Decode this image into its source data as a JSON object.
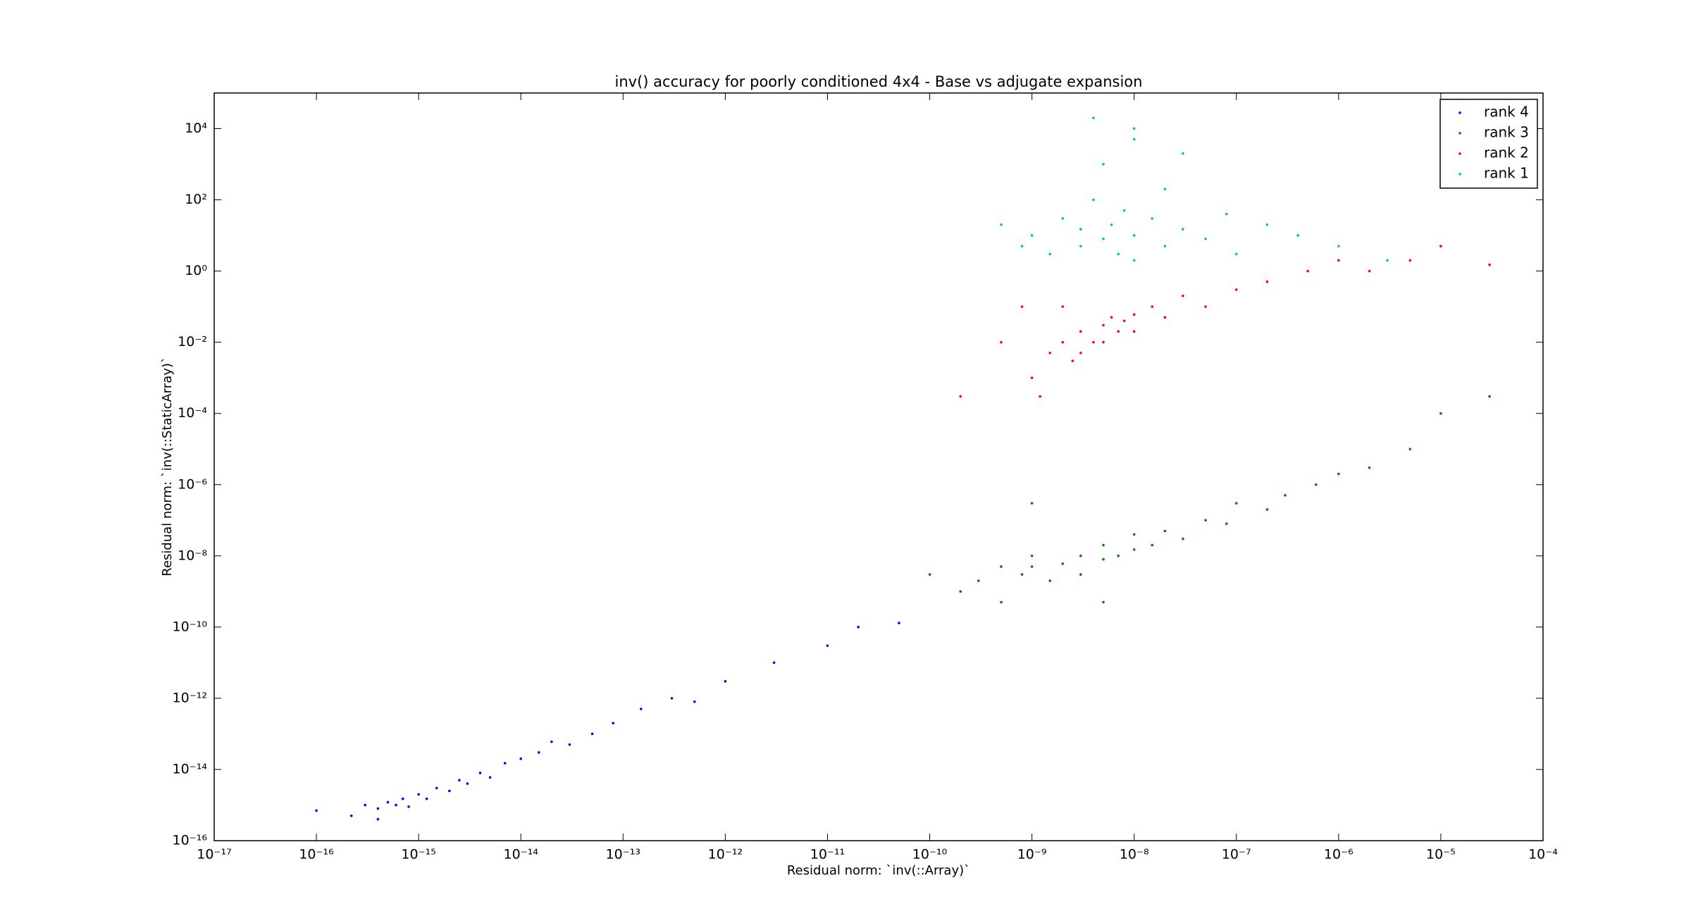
{
  "chart_data": {
    "type": "scatter",
    "title": "inv() accuracy for poorly conditioned 4x4 - Base vs adjugate expansion",
    "x_label": "Residual norm: `inv(::Array)`",
    "y_label": "Residual norm: `inv(::StaticArray)`",
    "x_scale": "log",
    "y_scale": "log",
    "legend": "upper right",
    "xlim": [
      1e-17,
      0.0001
    ],
    "ylim": [
      1e-16,
      100000.0
    ],
    "xticks": [
      {
        "value": 1e-17,
        "label": "10⁻¹⁷"
      },
      {
        "value": 1e-16,
        "label": "10⁻¹⁶"
      },
      {
        "value": 1e-15,
        "label": "10⁻¹⁵"
      },
      {
        "value": 1e-14,
        "label": "10⁻¹⁴"
      },
      {
        "value": 1e-13,
        "label": "10⁻¹³"
      },
      {
        "value": 1e-12,
        "label": "10⁻¹²"
      },
      {
        "value": 1e-11,
        "label": "10⁻¹¹"
      },
      {
        "value": 1e-10,
        "label": "10⁻¹⁰"
      },
      {
        "value": 1e-09,
        "label": "10⁻⁹"
      },
      {
        "value": 1e-08,
        "label": "10⁻⁸"
      },
      {
        "value": 1e-07,
        "label": "10⁻⁷"
      },
      {
        "value": 1e-06,
        "label": "10⁻⁶"
      },
      {
        "value": 1e-05,
        "label": "10⁻⁵"
      },
      {
        "value": 0.0001,
        "label": "10⁻⁴"
      }
    ],
    "yticks": [
      {
        "value": 1e-16,
        "label": "10⁻¹⁶"
      },
      {
        "value": 1e-14,
        "label": "10⁻¹⁴"
      },
      {
        "value": 1e-12,
        "label": "10⁻¹²"
      },
      {
        "value": 1e-10,
        "label": "10⁻¹⁰"
      },
      {
        "value": 1e-08,
        "label": "10⁻⁸"
      },
      {
        "value": 1e-06,
        "label": "10⁻⁶"
      },
      {
        "value": 0.0001,
        "label": "10⁻⁴"
      },
      {
        "value": 0.01,
        "label": "10⁻²"
      },
      {
        "value": 1,
        "label": "10⁰"
      },
      {
        "value": 100,
        "label": "10²"
      },
      {
        "value": 10000,
        "label": "10⁴"
      }
    ],
    "series": [
      {
        "name": "rank 4",
        "color": "#0000ff",
        "x": [
          3e-16,
          4e-16,
          5e-16,
          6e-16,
          7e-16,
          8e-16,
          1e-15,
          1.2e-15,
          1.5e-15,
          2e-15,
          2.5e-15,
          3e-15,
          4e-15,
          5e-15,
          7e-15,
          1e-14,
          1.5e-14,
          2e-14,
          3e-14,
          5e-14,
          8e-14,
          1.5e-13,
          3e-13,
          5e-13,
          1e-12,
          3e-12,
          1e-11,
          2e-11,
          5e-11,
          1e-16,
          2.2e-16,
          4e-16
        ],
        "values": [
          1e-15,
          8e-16,
          1.2e-15,
          1e-15,
          1.5e-15,
          9e-16,
          2e-15,
          1.5e-15,
          3e-15,
          2.5e-15,
          5e-15,
          4e-15,
          8e-15,
          6e-15,
          1.5e-14,
          2e-14,
          3e-14,
          6e-14,
          5e-14,
          1e-13,
          2e-13,
          5e-13,
          1e-12,
          8e-13,
          3e-12,
          1e-11,
          3e-11,
          1e-10,
          1.3e-10,
          7e-16,
          5e-16,
          4e-16
        ]
      },
      {
        "name": "rank 3",
        "color": "#008000",
        "x": [
          1e-10,
          2e-10,
          3e-10,
          5e-10,
          8e-10,
          1e-09,
          1e-09,
          1.5e-09,
          2e-09,
          3e-09,
          3e-09,
          5e-09,
          5e-09,
          7e-09,
          1e-08,
          1e-08,
          1.5e-08,
          2e-08,
          3e-08,
          5e-08,
          8e-08,
          1e-07,
          2e-07,
          3e-07,
          6e-07,
          1e-06,
          2e-06,
          5e-10,
          1e-09,
          5e-09,
          1e-05,
          5e-06,
          3e-05
        ],
        "values": [
          3e-09,
          1e-09,
          2e-09,
          5e-09,
          3e-09,
          5e-09,
          1e-08,
          2e-09,
          6e-09,
          1e-08,
          3e-09,
          8e-09,
          2e-08,
          1e-08,
          1.5e-08,
          4e-08,
          2e-08,
          5e-08,
          3e-08,
          1e-07,
          8e-08,
          3e-07,
          2e-07,
          5e-07,
          1e-06,
          2e-06,
          3e-06,
          5e-10,
          3e-07,
          5e-10,
          0.0001,
          1e-05,
          0.0003
        ]
      },
      {
        "name": "rank 2",
        "color": "#ff0000",
        "x": [
          1e-09,
          1.2e-09,
          1.5e-09,
          2e-09,
          2.5e-09,
          3e-09,
          3e-09,
          4e-09,
          5e-09,
          5e-09,
          6e-09,
          7e-09,
          8e-09,
          1e-08,
          1e-08,
          1.5e-08,
          2e-08,
          3e-08,
          5e-08,
          1e-07,
          2e-07,
          5e-07,
          1e-06,
          2e-06,
          5e-06,
          1e-05,
          3e-05,
          5e-10,
          2e-10,
          8e-10,
          2e-09
        ],
        "values": [
          0.001,
          0.0003,
          0.005,
          0.01,
          0.003,
          0.02,
          0.005,
          0.01,
          0.03,
          0.01,
          0.05,
          0.02,
          0.04,
          0.06,
          0.02,
          0.1,
          0.05,
          0.2,
          0.1,
          0.3,
          0.5,
          1,
          2,
          1,
          2,
          5,
          1.5,
          0.01,
          0.0003,
          0.1,
          0.1
        ]
      },
      {
        "name": "rank 1",
        "color": "#00bfbf",
        "x": [
          5e-10,
          8e-10,
          1e-09,
          1.5e-09,
          2e-09,
          3e-09,
          3e-09,
          4e-09,
          5e-09,
          6e-09,
          7e-09,
          8e-09,
          1e-08,
          1e-08,
          1.5e-08,
          2e-08,
          2e-08,
          3e-08,
          5e-08,
          8e-08,
          1e-07,
          2e-07,
          4e-07,
          1e-06,
          3e-06,
          5e-09,
          1e-08,
          1e-08,
          4e-09,
          3e-08
        ],
        "values": [
          20,
          5,
          10,
          3,
          30,
          5,
          15,
          100,
          8,
          20,
          3,
          50,
          10,
          2,
          30,
          5,
          200,
          15,
          8,
          40,
          3,
          20,
          10,
          5,
          2,
          1000,
          5000,
          10000,
          20000,
          2000
        ]
      }
    ]
  }
}
